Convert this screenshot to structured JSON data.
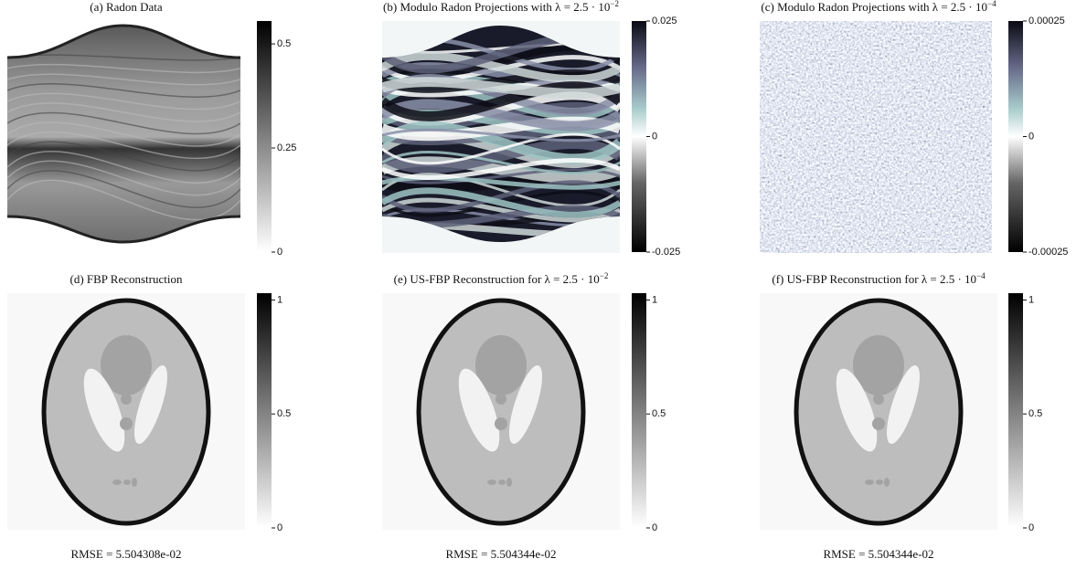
{
  "panels": [
    {
      "title": "(a) Radon Data",
      "colormap": "gray",
      "clim": [
        0,
        0.555
      ],
      "ticks": [
        0,
        0.25,
        0.5
      ]
    },
    {
      "title": "(b) Modulo Radon Projections with λ = 2.5 · 10",
      "title_sup": "−2",
      "colormap": "modulo",
      "clim": [
        -0.025,
        0.025
      ],
      "ticks": [
        -0.025,
        0,
        0.025
      ]
    },
    {
      "title": "(c) Modulo Radon Projections with λ = 2.5 · 10",
      "title_sup": "−4",
      "colormap": "modulo",
      "clim": [
        -0.00025,
        0.00025
      ],
      "ticks": [
        -0.00025,
        0,
        0.00025
      ]
    },
    {
      "title": "(d) FBP Reconstruction",
      "colormap": "gray",
      "clim": [
        0,
        1.03
      ],
      "ticks": [
        0,
        0.5,
        1
      ],
      "caption": "RMSE = 5.504308e-02"
    },
    {
      "title": "(e) US-FBP Reconstruction for λ = 2.5 · 10",
      "title_sup": "−2",
      "colormap": "gray",
      "clim": [
        0,
        1.03
      ],
      "ticks": [
        0,
        0.5,
        1
      ],
      "caption": "RMSE = 5.504344e-02"
    },
    {
      "title": "(f) US-FBP Reconstruction for λ = 2.5 · 10",
      "title_sup": "−4",
      "colormap": "gray",
      "clim": [
        0,
        1.03
      ],
      "ticks": [
        0,
        0.5,
        1
      ],
      "caption": "RMSE = 5.504344e-02"
    }
  ]
}
